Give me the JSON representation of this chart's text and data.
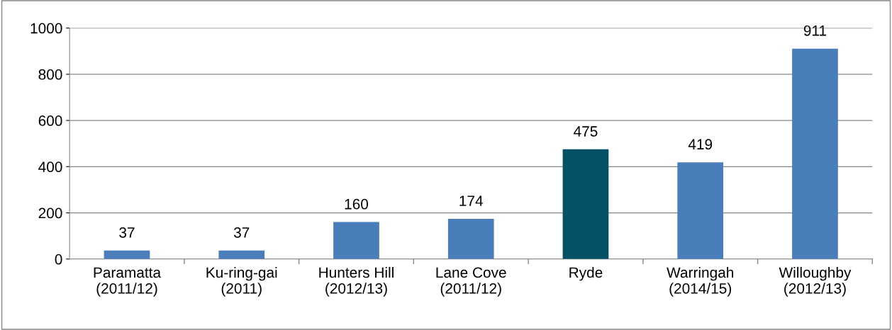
{
  "chart_data": {
    "type": "bar",
    "categories": [
      "Paramatta\n(2011/12)",
      "Ku-ring-gai\n(2011)",
      "Hunters Hill\n(2012/13)",
      "Lane Cove\n(2011/12)",
      "Ryde",
      "Warringah\n(2014/15)",
      "Willoughby\n(2012/13)"
    ],
    "values": [
      37,
      37,
      160,
      174,
      475,
      419,
      911
    ],
    "colors": [
      "#4a7ebb",
      "#4a7ebb",
      "#4a7ebb",
      "#4a7ebb",
      "#045064",
      "#4a7ebb",
      "#4a7ebb"
    ],
    "data_labels": true,
    "ylim": [
      0,
      1000
    ],
    "yticks": [
      0,
      200,
      400,
      600,
      800,
      1000
    ],
    "grid": "y",
    "legend": false
  }
}
